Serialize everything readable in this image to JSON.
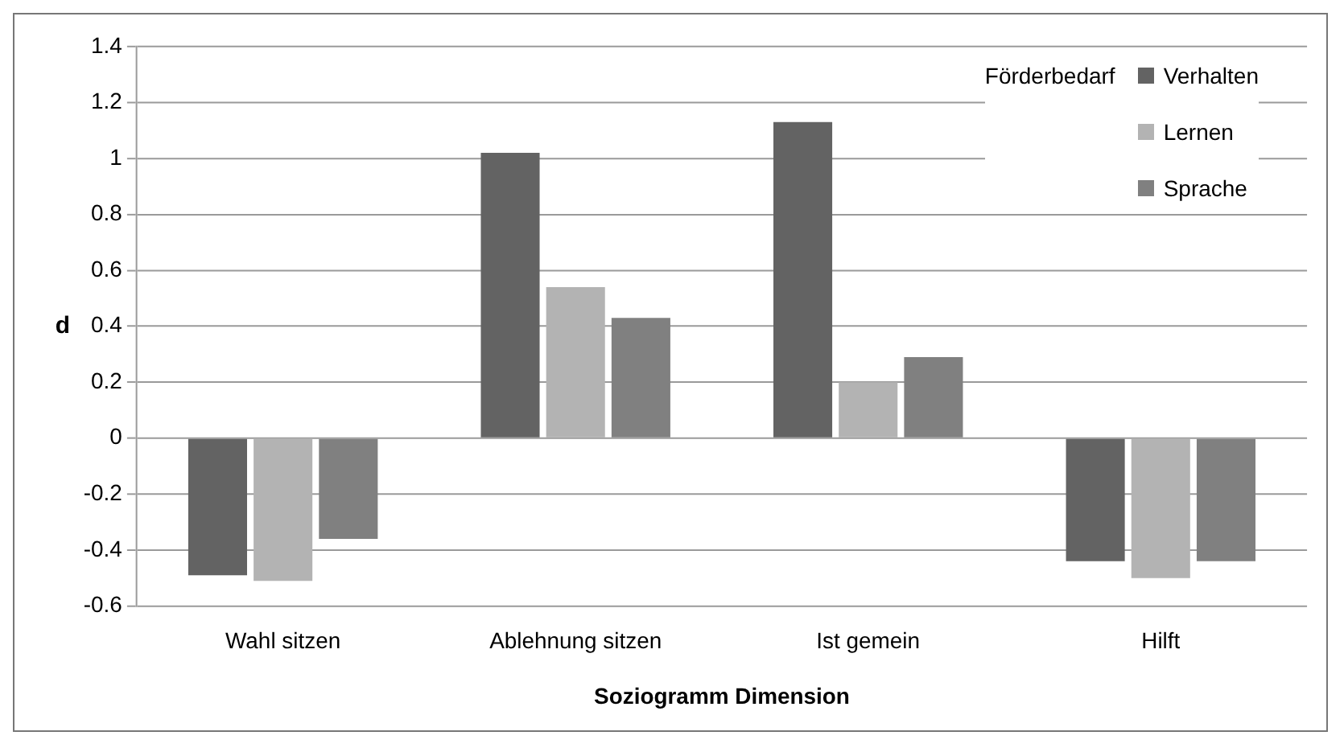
{
  "chart_data": {
    "type": "bar",
    "xlabel": "Soziogramm Dimension",
    "ylabel": "d",
    "legend_title": "Förderbedarf",
    "categories": [
      "Wahl sitzen",
      "Ablehnung sitzen",
      "Ist gemein",
      "Hilft"
    ],
    "series": [
      {
        "name": "Verhalten",
        "color": "#636363",
        "values": [
          -0.49,
          1.02,
          1.13,
          -0.44
        ]
      },
      {
        "name": "Lernen",
        "color": "#b3b3b3",
        "values": [
          -0.51,
          0.54,
          0.2,
          -0.5
        ]
      },
      {
        "name": "Sprache",
        "color": "#808080",
        "values": [
          -0.36,
          0.43,
          0.29,
          -0.44
        ]
      }
    ],
    "ylim": [
      -0.6,
      1.4
    ],
    "yticks": [
      -0.6,
      -0.4,
      -0.2,
      0,
      0.2,
      0.4,
      0.6,
      0.8,
      1,
      1.2,
      1.4
    ],
    "grid": "y",
    "legend": "top right"
  }
}
